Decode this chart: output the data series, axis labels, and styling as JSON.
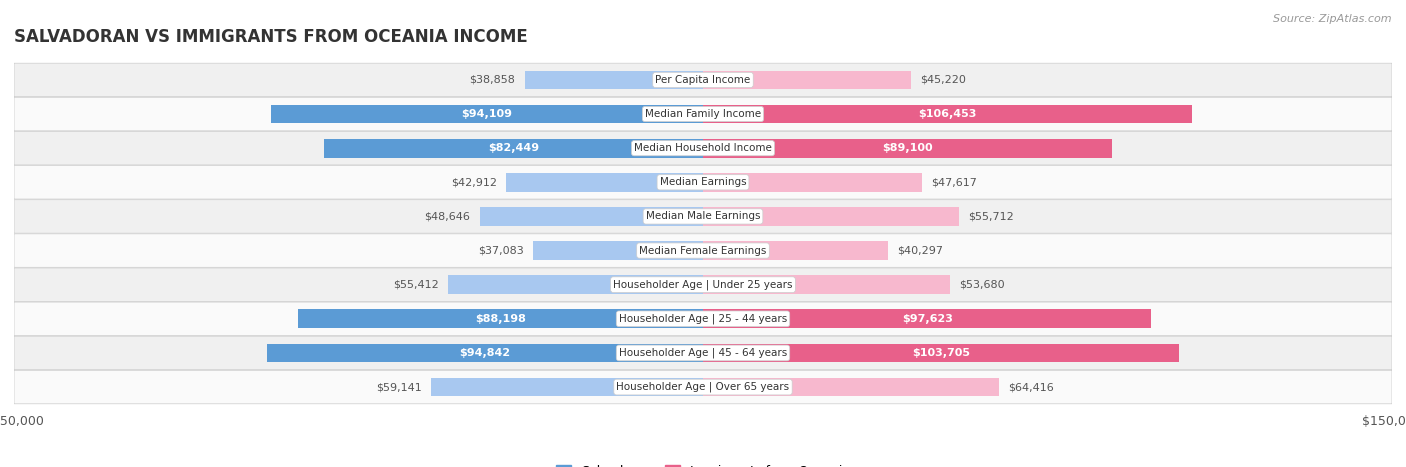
{
  "title": "SALVADORAN VS IMMIGRANTS FROM OCEANIA INCOME",
  "source": "Source: ZipAtlas.com",
  "categories": [
    "Per Capita Income",
    "Median Family Income",
    "Median Household Income",
    "Median Earnings",
    "Median Male Earnings",
    "Median Female Earnings",
    "Householder Age | Under 25 years",
    "Householder Age | 25 - 44 years",
    "Householder Age | 45 - 64 years",
    "Householder Age | Over 65 years"
  ],
  "salvadoran_values": [
    38858,
    94109,
    82449,
    42912,
    48646,
    37083,
    55412,
    88198,
    94842,
    59141
  ],
  "oceania_values": [
    45220,
    106453,
    89100,
    47617,
    55712,
    40297,
    53680,
    97623,
    103705,
    64416
  ],
  "salvadoran_color_light": "#A8C8F0",
  "salvadoran_color_dark": "#5B9BD5",
  "oceania_color_light": "#F7B8CE",
  "oceania_color_dark": "#E8608A",
  "salvadoran_dark_threshold": 75000,
  "oceania_dark_threshold": 75000,
  "bar_height": 0.55,
  "max_value": 150000,
  "row_bg_even": "#f0f0f0",
  "row_bg_odd": "#fafafa",
  "background_color": "#ffffff",
  "legend_salvadoran": "Salvadoran",
  "legend_oceania": "Immigrants from Oceania",
  "inside_label_color": "#ffffff",
  "outside_label_color": "#555555",
  "center_label_color": "#333333",
  "title_color": "#333333",
  "source_color": "#999999"
}
